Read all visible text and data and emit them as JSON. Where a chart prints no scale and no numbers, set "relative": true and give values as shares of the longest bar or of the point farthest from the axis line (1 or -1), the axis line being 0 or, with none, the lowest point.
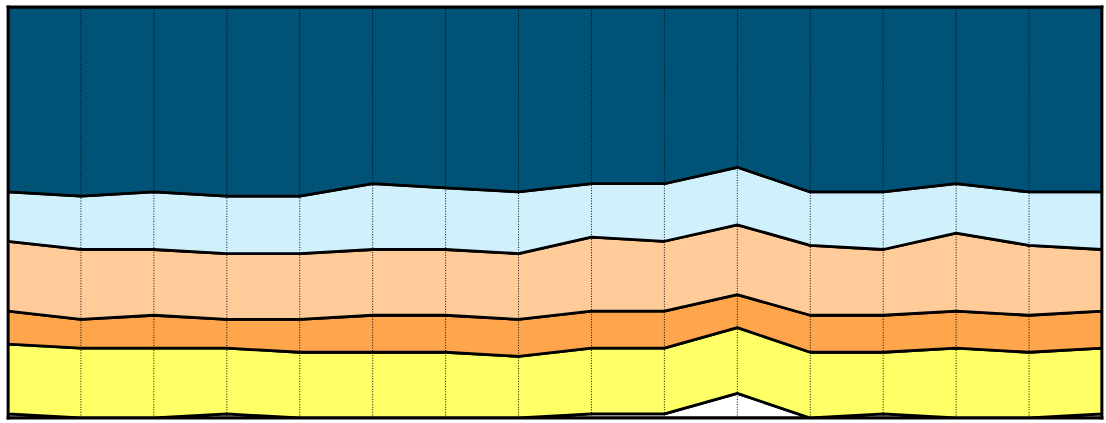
{
  "chart_data": {
    "type": "area",
    "stacked": true,
    "relative": true,
    "grid": "x",
    "legend": false,
    "line_style": "solid",
    "categories": [
      null,
      null,
      null,
      null,
      null,
      null,
      null,
      null,
      null,
      null,
      null,
      null,
      null,
      null,
      null,
      null
    ],
    "series": [
      {
        "color": "#ffffff",
        "values": [
          0.01,
          0,
          0,
          0.01,
          0,
          0,
          0,
          0,
          0.01,
          0.01,
          0.06,
          0,
          0.01,
          0,
          0,
          0.01
        ]
      },
      {
        "color": "#ffff66",
        "values": [
          0.17,
          0.17,
          0.17,
          0.16,
          0.16,
          0.16,
          0.16,
          0.15,
          0.16,
          0.16,
          0.16,
          0.16,
          0.15,
          0.17,
          0.16,
          0.16
        ]
      },
      {
        "color": "#ffa64d",
        "values": [
          0.08,
          0.07,
          0.08,
          0.07,
          0.08,
          0.09,
          0.09,
          0.09,
          0.09,
          0.09,
          0.08,
          0.09,
          0.09,
          0.09,
          0.09,
          0.09
        ]
      },
      {
        "color": "#ffcc99",
        "values": [
          0.17,
          0.17,
          0.16,
          0.16,
          0.16,
          0.16,
          0.16,
          0.16,
          0.18,
          0.17,
          0.17,
          0.17,
          0.16,
          0.19,
          0.17,
          0.15
        ]
      },
      {
        "color": "#d0f0fc",
        "values": [
          0.12,
          0.13,
          0.14,
          0.14,
          0.14,
          0.16,
          0.15,
          0.15,
          0.13,
          0.14,
          0.14,
          0.13,
          0.14,
          0.12,
          0.13,
          0.14
        ]
      },
      {
        "color": "#005277",
        "values": [
          0.45,
          0.46,
          0.45,
          0.46,
          0.46,
          0.43,
          0.44,
          0.45,
          0.43,
          0.43,
          0.39,
          0.45,
          0.45,
          0.43,
          0.45,
          0.45
        ]
      }
    ]
  }
}
